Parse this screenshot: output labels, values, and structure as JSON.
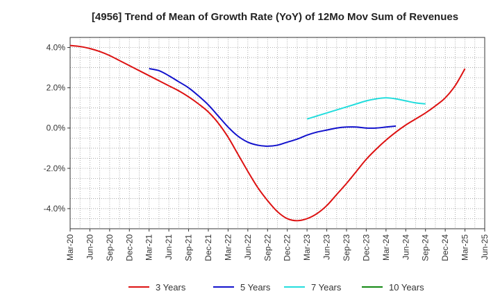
{
  "chart_data": {
    "type": "line",
    "title": "[4956]  Trend of Mean of Growth Rate (YoY) of 12Mo Mov Sum of Revenues",
    "xlabel": "",
    "ylabel": "",
    "ylim": [
      -5.0,
      4.5
    ],
    "y_ticks": [
      4.0,
      2.0,
      0.0,
      -2.0,
      -4.0
    ],
    "y_tick_labels": [
      "4.0%",
      "2.0%",
      "0.0%",
      "-2.0%",
      "-4.0%"
    ],
    "x_tick_labels": [
      "Mar-20",
      "Jun-20",
      "Sep-20",
      "Dec-20",
      "Mar-21",
      "Jun-21",
      "Sep-21",
      "Dec-21",
      "Mar-22",
      "Jun-22",
      "Sep-22",
      "Dec-22",
      "Mar-23",
      "Jun-23",
      "Sep-23",
      "Dec-23",
      "Mar-24",
      "Jun-24",
      "Sep-24",
      "Dec-24",
      "Mar-25",
      "Jun-25"
    ],
    "grid": true,
    "legend_position": "bottom",
    "series": [
      {
        "name": "3 Years",
        "color": "#dd1111",
        "start_index": 0,
        "values": [
          4.1,
          4.05,
          3.95,
          3.8,
          3.6,
          3.35,
          3.1,
          2.85,
          2.6,
          2.35,
          2.1,
          1.85,
          1.55,
          1.2,
          0.8,
          0.25,
          -0.45,
          -1.3,
          -2.15,
          -2.95,
          -3.6,
          -4.15,
          -4.5,
          -4.6,
          -4.5,
          -4.25,
          -3.85,
          -3.3,
          -2.75,
          -2.15,
          -1.55,
          -1.05,
          -0.6,
          -0.2,
          0.15,
          0.45,
          0.75,
          1.1,
          1.5,
          2.1,
          2.95
        ]
      },
      {
        "name": "5 Years",
        "color": "#1111cc",
        "start_index": 8,
        "values": [
          2.95,
          2.85,
          2.6,
          2.3,
          2.0,
          1.6,
          1.15,
          0.6,
          0.05,
          -0.4,
          -0.7,
          -0.85,
          -0.9,
          -0.85,
          -0.7,
          -0.55,
          -0.35,
          -0.2,
          -0.1,
          0.0,
          0.05,
          0.05,
          0.0,
          0.0,
          0.05,
          0.1
        ]
      },
      {
        "name": "7 Years",
        "color": "#22dddd",
        "start_index": 24,
        "values": [
          0.45,
          0.6,
          0.75,
          0.9,
          1.05,
          1.2,
          1.35,
          1.45,
          1.5,
          1.45,
          1.35,
          1.25,
          1.2
        ]
      },
      {
        "name": "10 Years",
        "color": "#118811",
        "start_index": 0,
        "values": []
      }
    ]
  }
}
